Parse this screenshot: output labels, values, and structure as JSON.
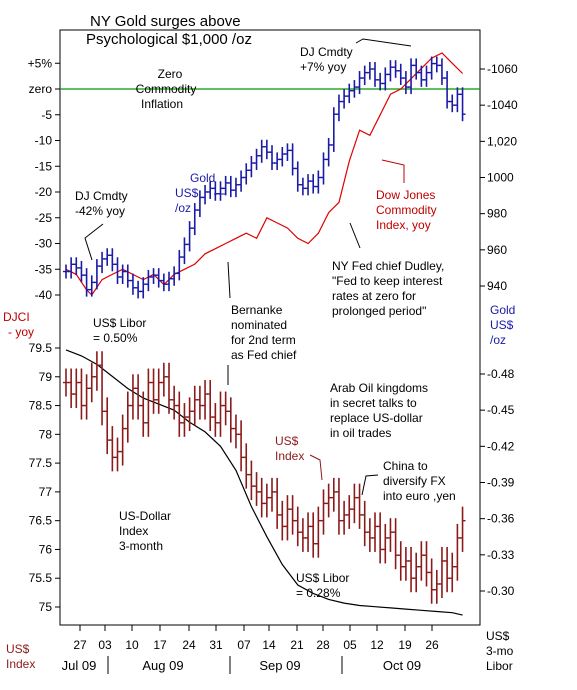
{
  "title": [
    "NY Gold surges above",
    "Psychological $1,000 /oz"
  ],
  "colors": {
    "gold": "#1a1aa6",
    "djci": "#e00000",
    "usd_index": "#8b1a1a",
    "libor": "#000000",
    "zero_line": "#009900",
    "text": "#000000",
    "red_text": "#c00000",
    "blue_text": "#1a1aa6"
  },
  "axis_labels": {
    "djci": [
      "DJCI",
      "- yoy"
    ],
    "gold": [
      "Gold",
      "US$",
      "/oz"
    ],
    "usd_index": [
      "US$",
      "Index"
    ],
    "libor": [
      "US$",
      "3-mo",
      "Libor"
    ]
  },
  "annotations": {
    "zero_commodity": [
      "Zero",
      "Commodity",
      "Inflation"
    ],
    "dj_cmdty_top": [
      "DJ Cmdty",
      "+7% yoy"
    ],
    "gold_label": [
      "Gold",
      "US$",
      "/oz"
    ],
    "dj_cmdty_low": [
      "DJ Cmdty",
      "-42% yoy"
    ],
    "dow_jones_label": [
      "Dow Jones",
      "Commodity",
      "Index, yoy"
    ],
    "fed_dudley": [
      "NY Fed chief Dudley,",
      "\"Fed to keep interest",
      "rates at zero for",
      "prolonged period\""
    ],
    "bernanke": [
      "Bernanke",
      "nominated",
      "for 2nd term",
      "as Fed chief"
    ],
    "libor_050": [
      "US$ Libor",
      "= 0.50%"
    ],
    "arab_oil": [
      "Arab Oil kingdoms",
      "in secret talks to",
      "replace US-dollar",
      "in oil trades"
    ],
    "usd_index_label": [
      "US$",
      "Index"
    ],
    "china": [
      "China to",
      "diversify FX",
      "into euro ,yen"
    ],
    "usd_dollar_index": [
      "US-Dollar",
      "Index",
      "3-month"
    ],
    "libor_028": [
      "US$ Libor",
      "= 0.28%"
    ]
  },
  "chart_data": [
    {
      "type": "line",
      "title": "NY Gold surges above Psychological $1,000 /oz",
      "x_tick_labels": [
        "27",
        "03",
        "10",
        "17",
        "24",
        "31",
        "07",
        "14",
        "21",
        "28",
        "05",
        "12",
        "19",
        "26"
      ],
      "month_labels": [
        "Jul 09",
        "Aug 09",
        "Sep 09",
        "Oct 09"
      ],
      "left_axis": {
        "label": "DJCI - yoy",
        "ticks": [
          "+5%",
          "zero",
          "-5",
          "-10",
          "-15",
          "-20",
          "-25",
          "-30",
          "-35",
          "-40"
        ],
        "range": [
          -42,
          6
        ]
      },
      "right_axis": {
        "label": "Gold US$ /oz",
        "ticks": [
          "1060",
          "1040",
          "1,020",
          "1000",
          "980",
          "960",
          "940"
        ],
        "range": [
          928,
          1070
        ]
      },
      "reference_lines": [
        {
          "axis": "left",
          "value": 0,
          "label": "Zero Commodity Inflation"
        }
      ],
      "series": [
        {
          "name": "Dow Jones Commodity Index, yoy",
          "axis": "left",
          "style": "line",
          "x": [
            0,
            2,
            4,
            5,
            7,
            9,
            11,
            13,
            15,
            17,
            19,
            21,
            23,
            25,
            27,
            29,
            31,
            33,
            35,
            37,
            39,
            41,
            43,
            45,
            47,
            49,
            51,
            53,
            55,
            57,
            59,
            61,
            63,
            65,
            67,
            69,
            71,
            73,
            75,
            77
          ],
          "values": [
            -35,
            -36,
            -39,
            -40,
            -37,
            -36,
            -35,
            -36,
            -37,
            -36,
            -38,
            -36,
            -35,
            -34,
            -32,
            -31,
            -30,
            -29,
            -28,
            -29,
            -25,
            -26,
            -27,
            -29,
            -30,
            -28,
            -24,
            -22,
            -14,
            -8,
            -9,
            -5,
            -1,
            0,
            2,
            4,
            6,
            7,
            5,
            3
          ]
        },
        {
          "name": "Gold US$ /oz",
          "axis": "right",
          "style": "ohlc",
          "x": [
            0,
            1,
            2,
            3,
            4,
            5,
            6,
            7,
            8,
            9,
            10,
            11,
            12,
            13,
            14,
            15,
            16,
            17,
            18,
            19,
            20,
            21,
            22,
            23,
            24,
            25,
            26,
            27,
            28,
            29,
            30,
            31,
            32,
            33,
            34,
            35,
            36,
            37,
            38,
            39,
            40,
            41,
            42,
            43,
            44,
            45,
            46,
            47,
            48,
            49,
            50,
            51,
            52,
            53,
            54,
            55,
            56,
            57,
            58,
            59,
            60,
            61,
            62,
            63,
            64,
            65,
            66,
            67,
            68,
            69,
            70,
            71,
            72,
            73,
            74,
            75,
            76,
            77
          ],
          "values": [
            948,
            952,
            950,
            946,
            938,
            942,
            951,
            955,
            957,
            952,
            945,
            948,
            943,
            939,
            937,
            941,
            945,
            946,
            943,
            941,
            944,
            947,
            956,
            963,
            972,
            982,
            989,
            992,
            994,
            991,
            994,
            997,
            993,
            996,
            1000,
            1004,
            1008,
            1012,
            1017,
            1014,
            1008,
            1010,
            1013,
            1015,
            1005,
            996,
            994,
            998,
            995,
            1000,
            1010,
            1018,
            1035,
            1042,
            1045,
            1048,
            1050,
            1055,
            1058,
            1060,
            1054,
            1052,
            1057,
            1061,
            1059,
            1055,
            1050,
            1062,
            1058,
            1054,
            1058,
            1063,
            1062,
            1055,
            1042,
            1040,
            1046,
            1035
          ]
        }
      ]
    },
    {
      "type": "line",
      "left_axis": {
        "label": "US$ Index",
        "ticks": [
          "79.5",
          "79",
          "78.5",
          "78",
          "77.5",
          "77",
          "76.5",
          "76",
          "75.5",
          "75"
        ],
        "range": [
          74.7,
          79.7
        ]
      },
      "right_axis": {
        "label": "US$ 3-mo Libor",
        "ticks": [
          "0.48",
          "0.45",
          "0.42",
          "0.39",
          "0.36",
          "0.33",
          "0.30"
        ],
        "range": [
          0.275,
          0.515
        ]
      },
      "series": [
        {
          "name": "US$ Index",
          "axis": "left",
          "style": "ohlc",
          "x": [
            0,
            1,
            2,
            3,
            4,
            5,
            6,
            7,
            8,
            9,
            10,
            11,
            12,
            13,
            14,
            15,
            16,
            17,
            18,
            19,
            20,
            21,
            22,
            23,
            24,
            25,
            26,
            27,
            28,
            29,
            30,
            31,
            32,
            33,
            34,
            35,
            36,
            37,
            38,
            39,
            40,
            41,
            42,
            43,
            44,
            45,
            46,
            47,
            48,
            49,
            50,
            51,
            52,
            53,
            54,
            55,
            56,
            57,
            58,
            59,
            60,
            61,
            62,
            63,
            64,
            65,
            66,
            67,
            68,
            69,
            70,
            71,
            72,
            73,
            74,
            75,
            76,
            77
          ],
          "values": [
            78.9,
            78.7,
            78.9,
            78.5,
            78.8,
            79.0,
            79.2,
            78.4,
            77.9,
            77.6,
            77.7,
            78.1,
            78.5,
            78.8,
            78.5,
            78.2,
            78.9,
            78.6,
            78.9,
            79.0,
            78.6,
            78.5,
            78.2,
            78.3,
            78.4,
            78.6,
            78.5,
            78.7,
            78.3,
            78.2,
            78.5,
            78.4,
            78.1,
            78.0,
            77.6,
            77.3,
            77.1,
            77.0,
            76.8,
            76.9,
            77.0,
            76.6,
            76.4,
            76.7,
            76.5,
            76.3,
            76.2,
            76.4,
            76.1,
            76.5,
            76.8,
            76.9,
            77.0,
            76.5,
            76.6,
            76.7,
            76.9,
            76.6,
            76.3,
            76.2,
            76.4,
            76.0,
            76.2,
            76.3,
            75.9,
            75.7,
            75.8,
            75.5,
            75.7,
            75.9,
            75.6,
            75.3,
            75.4,
            75.8,
            75.5,
            75.7,
            76.2,
            76.5
          ]
        },
        {
          "name": "US-Dollar Index 3-month",
          "axis": "right",
          "style": "line",
          "x": [
            0,
            3,
            6,
            9,
            12,
            15,
            18,
            21,
            24,
            27,
            30,
            33,
            36,
            39,
            42,
            45,
            48,
            51,
            54,
            57,
            60,
            63,
            66,
            69,
            72,
            75,
            77
          ],
          "values": [
            0.5,
            0.495,
            0.488,
            0.478,
            0.468,
            0.46,
            0.455,
            0.45,
            0.44,
            0.432,
            0.42,
            0.4,
            0.37,
            0.345,
            0.322,
            0.305,
            0.298,
            0.293,
            0.29,
            0.288,
            0.287,
            0.286,
            0.285,
            0.284,
            0.283,
            0.282,
            0.28
          ]
        }
      ]
    }
  ]
}
